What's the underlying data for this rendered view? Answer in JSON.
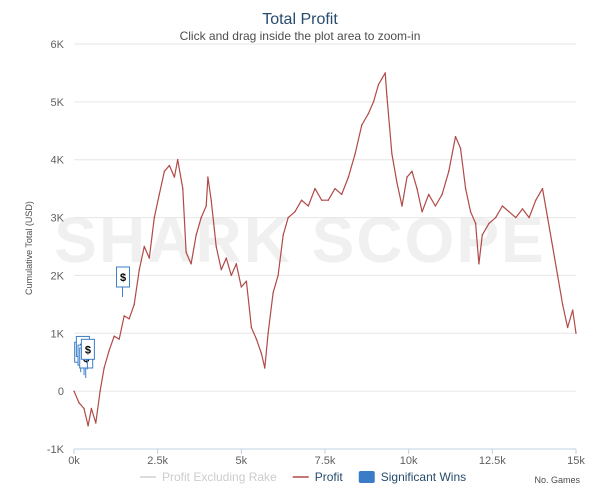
{
  "chart_data": {
    "type": "line",
    "title": "Total Profit",
    "subtitle": "Click and drag inside the plot area to zoom-in",
    "xlabel": "No. Games",
    "ylabel": "Cumulative Total (USD)",
    "xlim": [
      0,
      15000
    ],
    "ylim": [
      -1000,
      6000
    ],
    "x_ticks": [
      0,
      2500,
      5000,
      7500,
      10000,
      12500,
      15000
    ],
    "x_tick_labels": [
      "0k",
      "2.5k",
      "5k",
      "7.5k",
      "10k",
      "12.5k",
      "15k"
    ],
    "y_ticks": [
      -1000,
      0,
      1000,
      2000,
      3000,
      4000,
      5000,
      6000
    ],
    "y_tick_labels": [
      "-1K",
      "0",
      "1K",
      "2K",
      "3K",
      "4K",
      "5K",
      "6K"
    ],
    "watermark": "SHARK SCOPE",
    "legend": [
      {
        "name": "Profit Excluding Rake",
        "color": "#d0d0d0",
        "kind": "line",
        "visible": false
      },
      {
        "name": "Profit",
        "color": "#b04a48",
        "kind": "line",
        "visible": true
      },
      {
        "name": "Significant Wins",
        "color": "#3a7cc8",
        "kind": "box",
        "visible": true
      }
    ],
    "series": [
      {
        "name": "Profit",
        "color": "#b04a48",
        "points": [
          [
            0,
            0
          ],
          [
            150,
            -200
          ],
          [
            300,
            -300
          ],
          [
            420,
            -600
          ],
          [
            520,
            -300
          ],
          [
            650,
            -550
          ],
          [
            780,
            0
          ],
          [
            900,
            400
          ],
          [
            1050,
            700
          ],
          [
            1200,
            950
          ],
          [
            1350,
            900
          ],
          [
            1500,
            1300
          ],
          [
            1650,
            1250
          ],
          [
            1800,
            1500
          ],
          [
            1950,
            2100
          ],
          [
            2100,
            2500
          ],
          [
            2250,
            2300
          ],
          [
            2400,
            3000
          ],
          [
            2550,
            3400
          ],
          [
            2700,
            3800
          ],
          [
            2850,
            3900
          ],
          [
            3000,
            3700
          ],
          [
            3100,
            4000
          ],
          [
            3250,
            3500
          ],
          [
            3350,
            2400
          ],
          [
            3500,
            2200
          ],
          [
            3650,
            2700
          ],
          [
            3800,
            3000
          ],
          [
            3950,
            3200
          ],
          [
            4000,
            3700
          ],
          [
            4100,
            3300
          ],
          [
            4250,
            2500
          ],
          [
            4400,
            2100
          ],
          [
            4550,
            2300
          ],
          [
            4700,
            2000
          ],
          [
            4850,
            2200
          ],
          [
            5000,
            1800
          ],
          [
            5150,
            1900
          ],
          [
            5300,
            1100
          ],
          [
            5450,
            900
          ],
          [
            5600,
            650
          ],
          [
            5700,
            400
          ],
          [
            5800,
            1000
          ],
          [
            5950,
            1700
          ],
          [
            6100,
            2000
          ],
          [
            6250,
            2700
          ],
          [
            6400,
            3000
          ],
          [
            6600,
            3100
          ],
          [
            6800,
            3300
          ],
          [
            7000,
            3200
          ],
          [
            7200,
            3500
          ],
          [
            7400,
            3300
          ],
          [
            7600,
            3300
          ],
          [
            7800,
            3500
          ],
          [
            8000,
            3400
          ],
          [
            8200,
            3700
          ],
          [
            8400,
            4100
          ],
          [
            8600,
            4600
          ],
          [
            8800,
            4800
          ],
          [
            8950,
            5000
          ],
          [
            9100,
            5300
          ],
          [
            9200,
            5400
          ],
          [
            9300,
            5500
          ],
          [
            9350,
            5100
          ],
          [
            9500,
            4100
          ],
          [
            9650,
            3600
          ],
          [
            9800,
            3200
          ],
          [
            9950,
            3700
          ],
          [
            10100,
            3800
          ],
          [
            10250,
            3500
          ],
          [
            10400,
            3100
          ],
          [
            10600,
            3400
          ],
          [
            10800,
            3200
          ],
          [
            11000,
            3400
          ],
          [
            11200,
            3800
          ],
          [
            11400,
            4400
          ],
          [
            11550,
            4200
          ],
          [
            11700,
            3500
          ],
          [
            11850,
            3100
          ],
          [
            12000,
            2900
          ],
          [
            12100,
            2200
          ],
          [
            12200,
            2700
          ],
          [
            12400,
            2900
          ],
          [
            12600,
            3000
          ],
          [
            12800,
            3200
          ],
          [
            13000,
            3100
          ],
          [
            13200,
            3000
          ],
          [
            13400,
            3150
          ],
          [
            13600,
            3000
          ],
          [
            13800,
            3300
          ],
          [
            14000,
            3500
          ],
          [
            14150,
            3000
          ],
          [
            14300,
            2500
          ],
          [
            14450,
            2000
          ],
          [
            14600,
            1500
          ],
          [
            14750,
            1100
          ],
          [
            14900,
            1400
          ],
          [
            15000,
            1000
          ]
        ]
      }
    ],
    "significant_wins": [
      {
        "x": 200,
        "y": 500,
        "label": "$"
      },
      {
        "x": 250,
        "y": 600,
        "label": "$"
      },
      {
        "x": 300,
        "y": 450,
        "label": "$"
      },
      {
        "x": 350,
        "y": 400,
        "label": "$"
      },
      {
        "x": 400,
        "y": 550,
        "label": "$"
      },
      {
        "x": 1450,
        "y": 1800,
        "label": "$"
      }
    ]
  }
}
